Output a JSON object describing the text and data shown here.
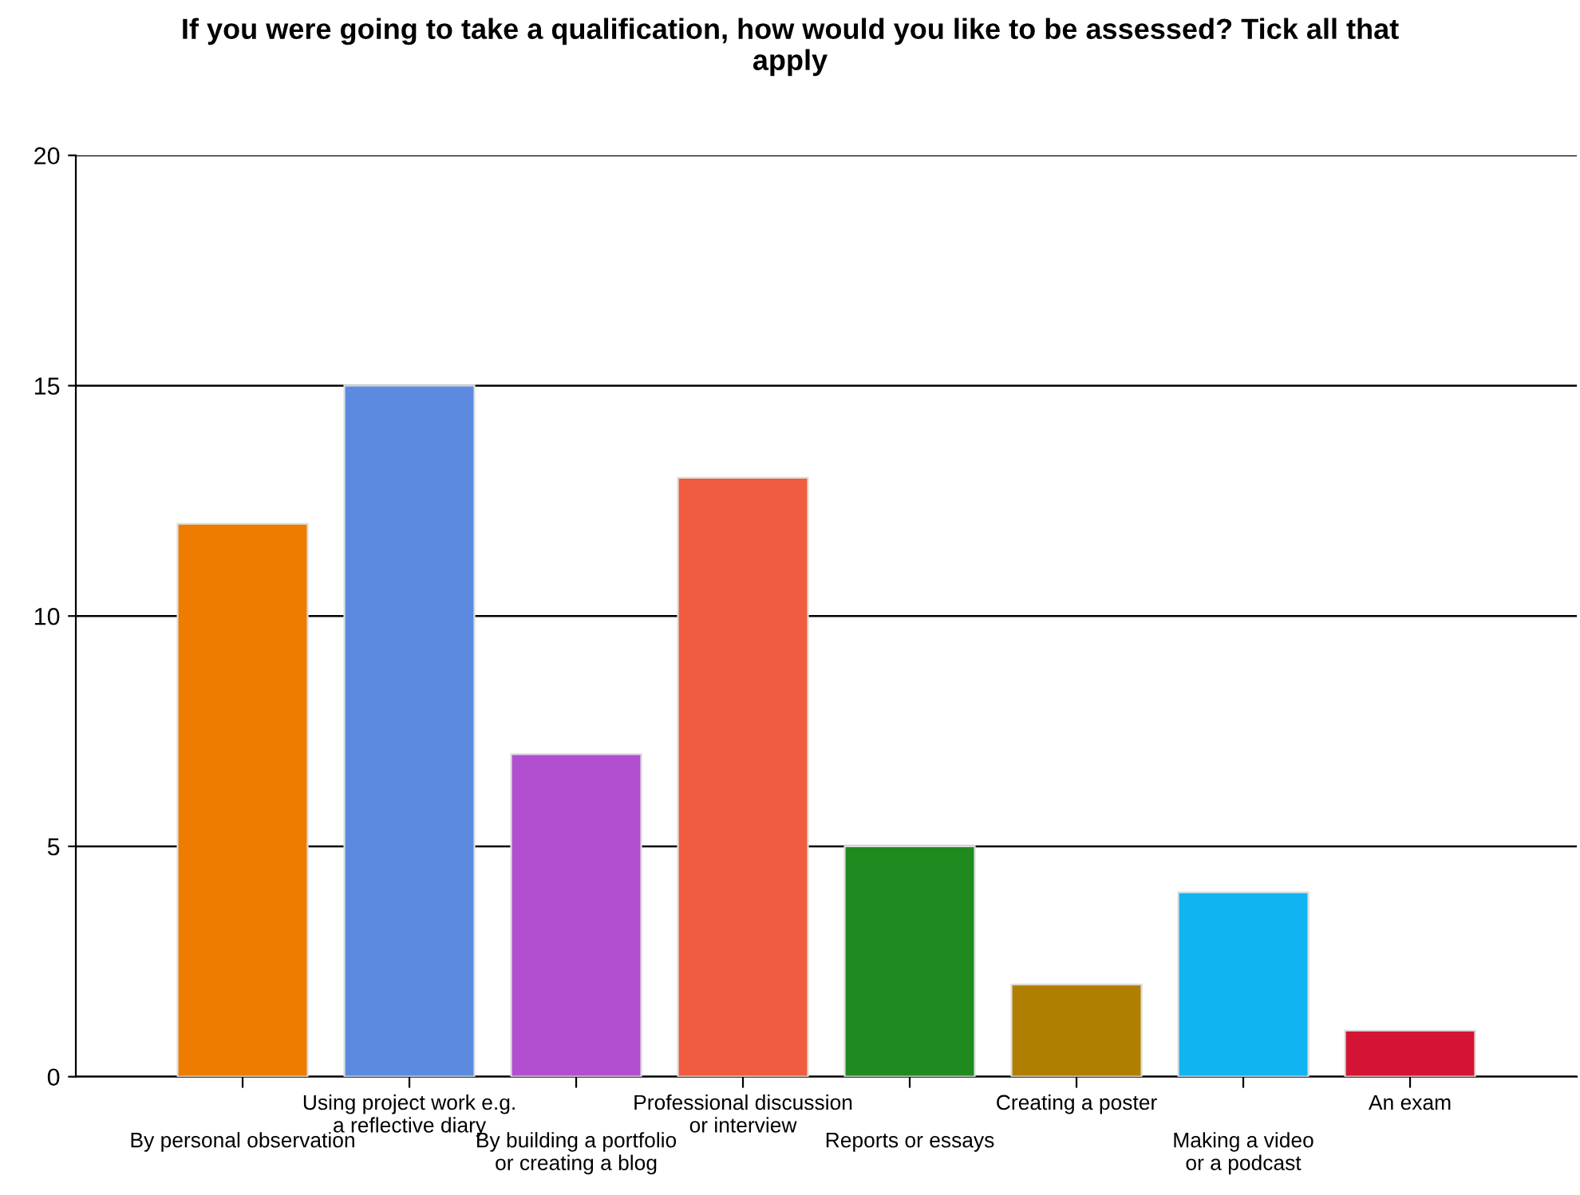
{
  "chart_data": {
    "type": "bar",
    "title": "If you were going to take a qualification, how would you like to be assessed? Tick all that\napply",
    "categories": [
      "By personal observation",
      "Using project work e.g.\na reflective diary",
      "By building a portfolio\nor creating a blog",
      "Professional discussion\nor interview",
      "Reports or essays",
      "Creating a poster",
      "Making a video\nor a podcast",
      "An exam"
    ],
    "values": [
      12,
      15,
      7,
      13,
      5,
      2,
      4,
      1
    ],
    "colors": [
      "#ee7c00",
      "#5b8ae0",
      "#b24fd0",
      "#f05c40",
      "#1f8a1f",
      "#b07e00",
      "#10b4f0",
      "#d41434"
    ],
    "ylim": [
      0,
      20
    ],
    "yticks": [
      0,
      5,
      10,
      15,
      20
    ],
    "grid": "y",
    "legend": false
  }
}
